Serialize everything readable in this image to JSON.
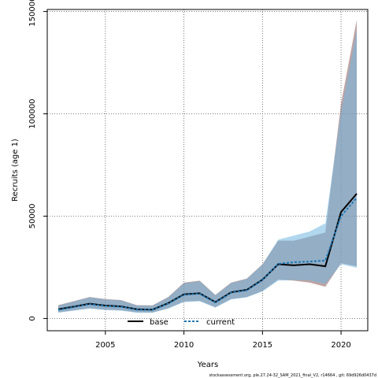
{
  "chart_data": {
    "type": "line",
    "xlabel": "Years",
    "ylabel": "Recruits (age 1)",
    "xlim": [
      2001.3,
      2021.7
    ],
    "ylim": [
      -6000,
      151000
    ],
    "xticks": [
      2005,
      2010,
      2015,
      2020
    ],
    "yticks": [
      0,
      50000,
      100000,
      150000
    ],
    "grid": true,
    "legend_position": "bottom",
    "x": [
      2002,
      2003,
      2004,
      2005,
      2006,
      2007,
      2008,
      2009,
      2010,
      2011,
      2012,
      2013,
      2014,
      2015,
      2016,
      2017,
      2018,
      2019,
      2020,
      2021
    ],
    "series": [
      {
        "name": "base",
        "color": "#000000",
        "band_color": "#8b5a5a",
        "values": [
          4500,
          5800,
          7200,
          6300,
          5900,
          4500,
          4300,
          7500,
          11800,
          12300,
          8000,
          12800,
          14000,
          19000,
          26500,
          26000,
          26500,
          25500,
          52000,
          61000
        ],
        "lower": [
          3000,
          4000,
          5000,
          4300,
          4000,
          3000,
          2900,
          5000,
          8300,
          8600,
          5500,
          9500,
          10500,
          13500,
          19000,
          18500,
          17500,
          15500,
          27000,
          25500
        ],
        "upper": [
          6500,
          8500,
          10500,
          9500,
          9000,
          6500,
          6400,
          10500,
          17500,
          18500,
          11500,
          17500,
          19500,
          26500,
          38000,
          38000,
          40000,
          42000,
          105000,
          146000
        ]
      },
      {
        "name": "current",
        "color": "#1f77b4",
        "band_color": "#6fb6e0",
        "values": [
          4200,
          5600,
          7000,
          6100,
          5700,
          4300,
          4200,
          7300,
          11600,
          12100,
          7800,
          12600,
          13800,
          18800,
          26700,
          27500,
          27800,
          28300,
          50000,
          59000
        ],
        "lower": [
          2800,
          3800,
          4800,
          4100,
          3800,
          2800,
          2800,
          4800,
          8000,
          8400,
          5300,
          9300,
          10300,
          13200,
          18500,
          18800,
          18600,
          16800,
          26500,
          24800
        ],
        "upper": [
          6300,
          8300,
          10300,
          9300,
          8800,
          6300,
          6200,
          10300,
          17200,
          18200,
          11300,
          17300,
          19300,
          26300,
          38500,
          40500,
          42500,
          46500,
          101000,
          141000
        ]
      }
    ]
  },
  "footer": {
    "text": "stockassessment.org, ple.27.24-32_SAM_2021_final_V2, r14664 , git: 69d926d0437d"
  }
}
